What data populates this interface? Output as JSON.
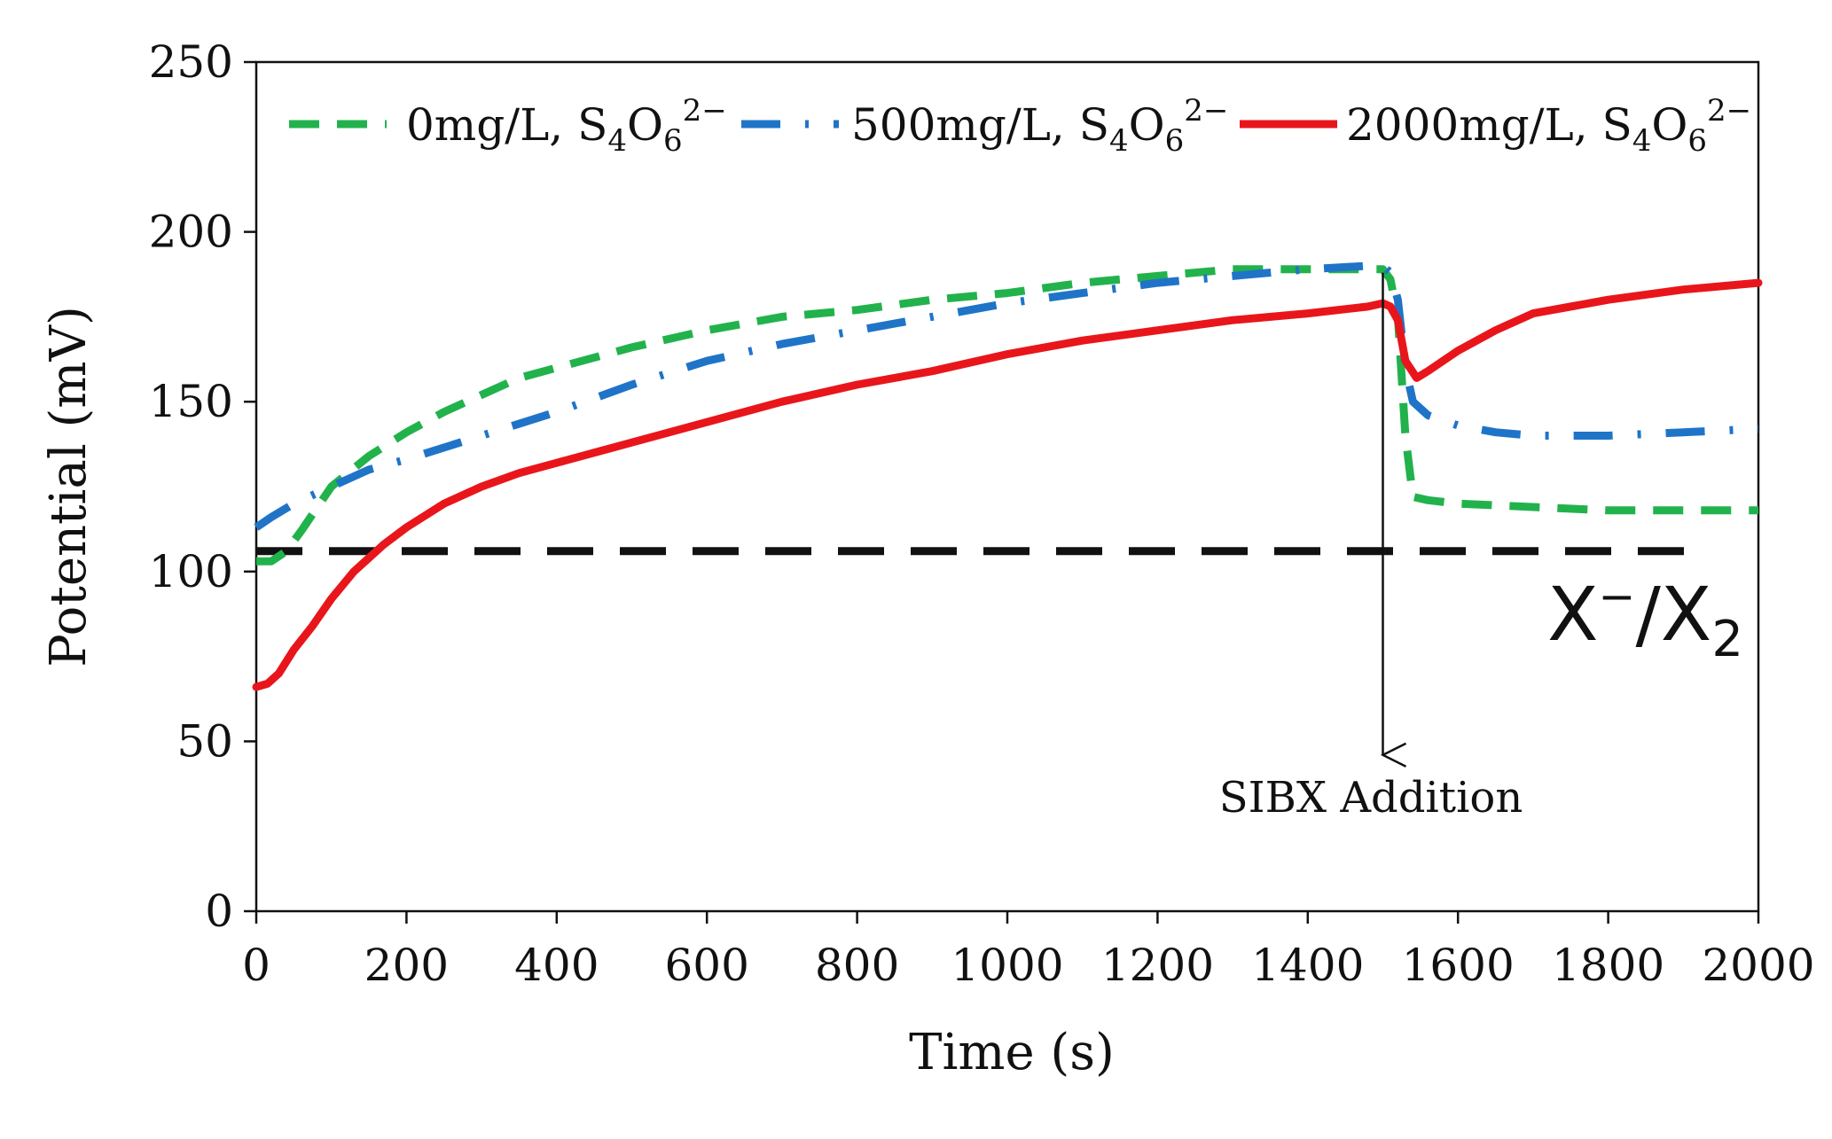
{
  "chart_data": {
    "type": "line",
    "title": "",
    "xlabel": "Time (s)",
    "ylabel": "Potential (mV)",
    "xlim": [
      0,
      2000
    ],
    "ylim": [
      0,
      250
    ],
    "xticks": [
      0,
      200,
      400,
      600,
      800,
      1000,
      1200,
      1400,
      1600,
      1800,
      2000
    ],
    "yticks": [
      0,
      50,
      100,
      150,
      200,
      250
    ],
    "grid": false,
    "legend_position": "top",
    "series": [
      {
        "name": "0mg/L, S₄O₆²⁻",
        "name_main": "0mg/L, S",
        "name_sub1": "4",
        "name_mid": "O",
        "name_sub2": "6",
        "name_sup": "2−",
        "color": "#22b24c",
        "style": "dashed",
        "x": [
          0,
          20,
          40,
          60,
          100,
          150,
          200,
          250,
          300,
          350,
          400,
          500,
          600,
          700,
          800,
          900,
          1000,
          1100,
          1200,
          1300,
          1400,
          1480,
          1500,
          1510,
          1520,
          1530,
          1540,
          1560,
          1600,
          1700,
          1800,
          1900,
          2000
        ],
        "y": [
          103,
          103,
          106,
          112,
          125,
          134,
          141,
          147,
          152,
          157,
          160,
          166,
          171,
          175,
          177,
          180,
          182,
          185,
          187,
          189,
          189,
          189,
          189,
          186,
          175,
          140,
          122,
          121,
          120,
          119,
          118,
          118,
          118
        ]
      },
      {
        "name": "500mg/L, S₄O₆²⁻",
        "name_main": "500mg/L, S",
        "name_sub1": "4",
        "name_mid": "O",
        "name_sub2": "6",
        "name_sup": "2−",
        "color": "#1f74c8",
        "style": "dash-dot",
        "x": [
          0,
          20,
          50,
          100,
          150,
          200,
          300,
          400,
          500,
          600,
          700,
          800,
          900,
          1000,
          1100,
          1200,
          1300,
          1400,
          1480,
          1500,
          1510,
          1520,
          1530,
          1540,
          1560,
          1600,
          1650,
          1700,
          1800,
          1900,
          2000
        ],
        "y": [
          113,
          116,
          120,
          125,
          130,
          133,
          140,
          147,
          155,
          162,
          167,
          171,
          175,
          179,
          182,
          185,
          187,
          189,
          190,
          190,
          188,
          180,
          160,
          150,
          146,
          143,
          141,
          140,
          140,
          141,
          142
        ]
      },
      {
        "name": "2000mg/L, S₄O₆²⁻",
        "name_main": "2000mg/L, S",
        "name_sub1": "4",
        "name_mid": "O",
        "name_sub2": "6",
        "name_sup": "2−",
        "color": "#e8161b",
        "style": "solid",
        "x": [
          0,
          15,
          30,
          50,
          75,
          100,
          130,
          170,
          200,
          250,
          300,
          350,
          400,
          500,
          600,
          700,
          800,
          900,
          1000,
          1100,
          1200,
          1300,
          1400,
          1480,
          1500,
          1510,
          1520,
          1530,
          1545,
          1560,
          1600,
          1650,
          1700,
          1800,
          1900,
          2000
        ],
        "y": [
          66,
          67,
          70,
          77,
          84,
          92,
          100,
          108,
          113,
          120,
          125,
          129,
          132,
          138,
          144,
          150,
          155,
          159,
          164,
          168,
          171,
          174,
          176,
          178,
          179,
          178,
          174,
          162,
          157,
          159,
          165,
          171,
          176,
          180,
          183,
          185
        ]
      }
    ],
    "reference_line": {
      "y": 106,
      "x_range": [
        0,
        1920
      ],
      "label_main": "X",
      "label_sup": "−",
      "label_slash": "/X",
      "label_sub": "2",
      "color": "#111111",
      "style": "long-dash"
    },
    "annotation": {
      "text": "SIBX Addition",
      "arrow_x": 1500,
      "arrow_from_y": 188,
      "arrow_to_y": 46
    }
  }
}
